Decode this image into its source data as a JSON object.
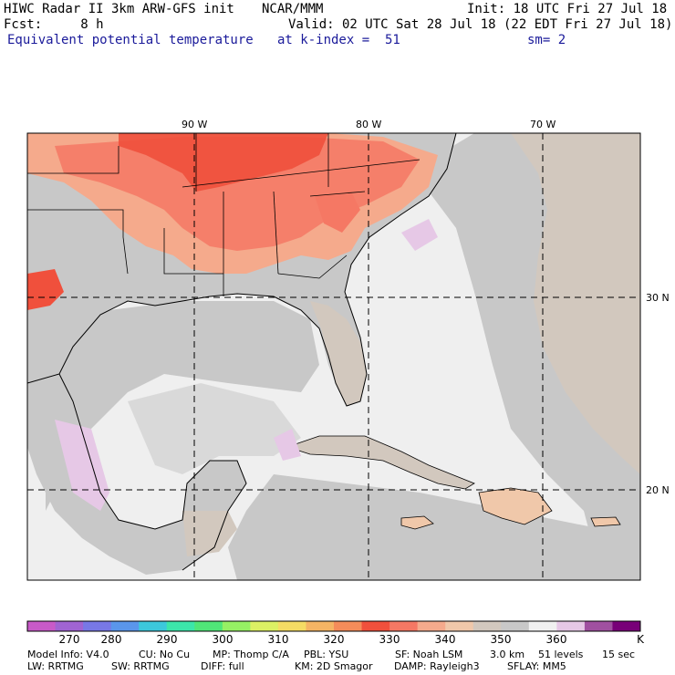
{
  "header": {
    "line1_left": "HIWC Radar II 3km ARW-GFS init",
    "line1_mid": "NCAR/MMM",
    "line1_right": "Init: 18 UTC Fri 27 Jul 18",
    "line2_left": "Fcst:     8 h",
    "line2_right": "Valid: 02 UTC Sat 28 Jul 18 (22 EDT Fri 27 Jul 18)",
    "line3_left": "Equivalent potential temperature",
    "line3_mid": "at k-index =  51",
    "line3_right": "sm= 2"
  },
  "map": {
    "lon_labels": [
      "90 W",
      "80 W",
      "70 W"
    ],
    "lat_labels": [
      "30 N",
      "20 N"
    ]
  },
  "colorbar": {
    "labels": [
      "270",
      "280",
      "290",
      "300",
      "310",
      "320",
      "330",
      "340",
      "350",
      "360"
    ],
    "unit": "K",
    "colors": [
      "#c85ac8",
      "#a064d2",
      "#7878e6",
      "#5a96eb",
      "#3cc8dc",
      "#3ce6aa",
      "#50e678",
      "#96f064",
      "#dcf064",
      "#f5dc64",
      "#f5b464",
      "#f58c5a",
      "#f0503c",
      "#f57864",
      "#f5aa8c",
      "#f0c8aa",
      "#d2c8be",
      "#c8c8c8",
      "#f0f0f0",
      "#e6c8e6",
      "#a050a0",
      "#780078"
    ]
  },
  "model_info": {
    "line1": [
      "Model Info: V4.0",
      "CU: No Cu",
      "MP: Thomp C/A",
      "PBL: YSU",
      "SF: Noah LSM",
      "3.0 km",
      "51 levels",
      "15 sec"
    ],
    "line2": [
      "LW: RRTMG",
      "SW: RRTMG",
      "DIFF: full",
      "KM: 2D Smagor",
      "DAMP: Rayleigh3",
      "SFLAY: MM5"
    ]
  }
}
